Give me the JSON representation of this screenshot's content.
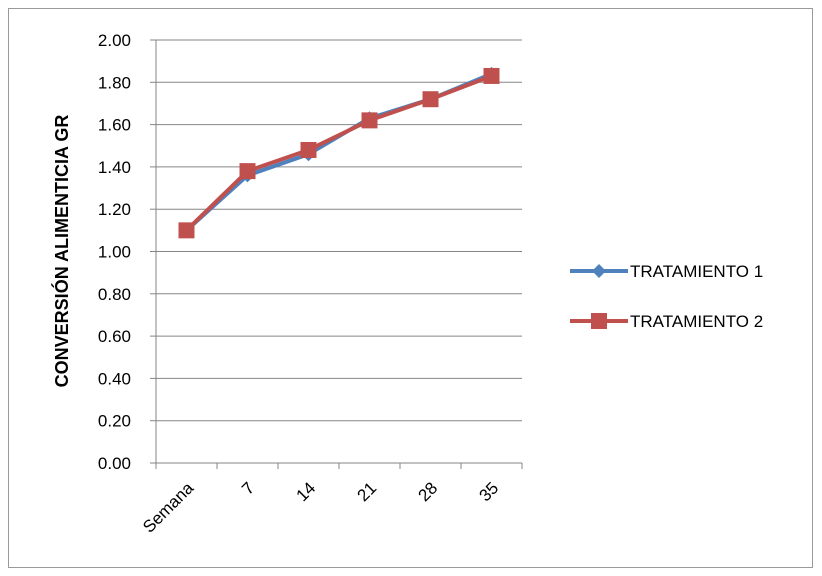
{
  "chart_data": {
    "type": "line",
    "title": "",
    "xlabel": "",
    "ylabel": "CONVERSIÓN ALIMENTICIA GR",
    "categories": [
      "Semana",
      "7",
      "14",
      "21",
      "28",
      "35"
    ],
    "ylim": [
      0,
      2.0
    ],
    "yticks": [
      "0.00",
      "0.20",
      "0.40",
      "0.60",
      "0.80",
      "1.00",
      "1.20",
      "1.40",
      "1.60",
      "1.80",
      "2.00"
    ],
    "grid": true,
    "legend_position": "right",
    "series": [
      {
        "name": "TRATAMIENTO 1",
        "values": [
          1.1,
          1.36,
          1.46,
          1.63,
          1.72,
          1.84
        ],
        "color": "#4F81BD",
        "marker": "diamond"
      },
      {
        "name": "TRATAMIENTO 2",
        "values": [
          1.1,
          1.38,
          1.48,
          1.62,
          1.72,
          1.83
        ],
        "color": "#C0504D",
        "marker": "square"
      }
    ]
  }
}
